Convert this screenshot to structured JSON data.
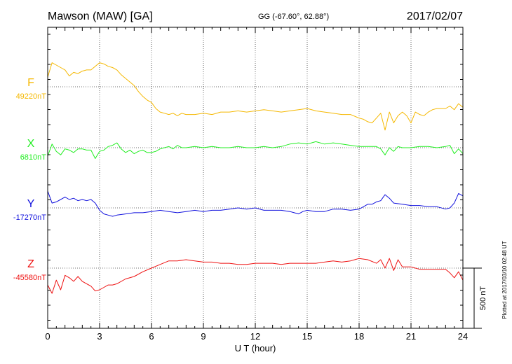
{
  "header": {
    "station": "Mawson (MAW)  [GA]",
    "coords": "GG (-67.60°,  62.88°)",
    "date": "2017/02/07"
  },
  "footer_note": "Plotted at 2017/03/10 02:48 UT",
  "chart_data": {
    "type": "line",
    "xlabel": "U T (hour)",
    "xlim": [
      0,
      24
    ],
    "xticks": [
      "0",
      "3",
      "6",
      "9",
      "12",
      "15",
      "18",
      "21",
      "24"
    ],
    "grid": true,
    "scale_bar": {
      "label": "500 nT",
      "value": 500
    },
    "colors": {
      "F": "#f5b800",
      "X": "#22ee22",
      "Y": "#1111dd",
      "Z": "#ee1111"
    },
    "series": [
      {
        "name": "F",
        "baseline_label": "49220nT",
        "baseline": 49220,
        "x": [
          0,
          0.25,
          0.5,
          0.75,
          1,
          1.25,
          1.5,
          1.75,
          2,
          2.25,
          2.5,
          2.75,
          3,
          3.25,
          3.5,
          3.75,
          4,
          4.25,
          4.5,
          4.75,
          5,
          5.25,
          5.5,
          5.75,
          6,
          6.25,
          6.5,
          6.75,
          7,
          7.25,
          7.5,
          7.75,
          8,
          8.5,
          9,
          9.5,
          10,
          10.5,
          11,
          11.5,
          12,
          12.5,
          13,
          13.5,
          14,
          14.5,
          15,
          15.5,
          16,
          16.5,
          17,
          17.5,
          18,
          18.25,
          18.5,
          18.75,
          19,
          19.25,
          19.5,
          19.75,
          20,
          20.25,
          20.5,
          20.75,
          21,
          21.25,
          21.5,
          21.75,
          22,
          22.25,
          22.5,
          22.75,
          23,
          23.25,
          23.5,
          23.75,
          24
        ],
        "values": [
          49300,
          49420,
          49400,
          49380,
          49360,
          49310,
          49340,
          49330,
          49350,
          49360,
          49360,
          49390,
          49420,
          49410,
          49390,
          49380,
          49360,
          49320,
          49290,
          49260,
          49230,
          49180,
          49140,
          49110,
          49090,
          49040,
          49010,
          49000,
          48990,
          49000,
          48980,
          49000,
          48990,
          48990,
          49000,
          48990,
          49010,
          49010,
          49020,
          49010,
          49020,
          49030,
          49020,
          49010,
          49020,
          49030,
          49040,
          49020,
          49010,
          49000,
          48990,
          48990,
          48960,
          48950,
          48930,
          48920,
          48960,
          49000,
          48860,
          49010,
          48920,
          48980,
          49010,
          48980,
          48920,
          49010,
          48990,
          48980,
          49010,
          49030,
          49040,
          49040,
          49040,
          49060,
          49030,
          49080,
          49050
        ]
      },
      {
        "name": "X",
        "baseline_label": "6810nT",
        "baseline": 6810,
        "x": [
          0,
          0.25,
          0.5,
          0.75,
          1,
          1.25,
          1.5,
          1.75,
          2,
          2.25,
          2.5,
          2.75,
          3,
          3.25,
          3.5,
          3.75,
          4,
          4.25,
          4.5,
          4.75,
          5,
          5.25,
          5.5,
          5.75,
          6,
          6.25,
          6.5,
          6.75,
          7,
          7.25,
          7.5,
          7.75,
          8,
          8.5,
          9,
          9.5,
          10,
          10.5,
          11,
          11.5,
          12,
          12.5,
          13,
          13.5,
          14,
          14.5,
          15,
          15.5,
          16,
          16.5,
          17,
          17.5,
          18,
          18.5,
          19,
          19.25,
          19.5,
          19.75,
          20,
          20.25,
          20.5,
          21,
          21.5,
          22,
          22.5,
          23,
          23.25,
          23.5,
          23.75,
          24
        ],
        "values": [
          6740,
          6840,
          6780,
          6750,
          6800,
          6790,
          6770,
          6800,
          6800,
          6790,
          6790,
          6720,
          6780,
          6790,
          6820,
          6830,
          6850,
          6800,
          6770,
          6790,
          6760,
          6780,
          6790,
          6770,
          6770,
          6780,
          6800,
          6810,
          6820,
          6800,
          6830,
          6810,
          6810,
          6820,
          6810,
          6820,
          6810,
          6810,
          6820,
          6810,
          6810,
          6820,
          6810,
          6820,
          6840,
          6850,
          6840,
          6860,
          6840,
          6850,
          6840,
          6830,
          6820,
          6820,
          6820,
          6800,
          6750,
          6810,
          6780,
          6820,
          6810,
          6810,
          6820,
          6820,
          6810,
          6820,
          6830,
          6760,
          6800,
          6760
        ]
      },
      {
        "name": "Y",
        "baseline_label": "-17270nT",
        "baseline": -17270,
        "x": [
          0,
          0.25,
          0.5,
          0.75,
          1,
          1.25,
          1.5,
          1.75,
          2,
          2.25,
          2.5,
          2.75,
          3,
          3.25,
          3.5,
          3.75,
          4,
          4.5,
          5,
          5.5,
          6,
          6.5,
          7,
          7.5,
          8,
          8.5,
          9,
          9.5,
          10,
          10.5,
          11,
          11.5,
          12,
          12.5,
          13,
          13.5,
          14,
          14.25,
          14.5,
          14.75,
          15,
          15.5,
          16,
          16.5,
          17,
          17.5,
          18,
          18.25,
          18.5,
          18.75,
          19,
          19.25,
          19.5,
          19.75,
          20,
          20.5,
          21,
          21.5,
          22,
          22.5,
          23,
          23.25,
          23.5,
          23.75,
          24
        ],
        "values": [
          -17130,
          -17230,
          -17220,
          -17200,
          -17180,
          -17200,
          -17190,
          -17210,
          -17200,
          -17210,
          -17200,
          -17230,
          -17290,
          -17320,
          -17330,
          -17340,
          -17330,
          -17320,
          -17310,
          -17310,
          -17300,
          -17290,
          -17300,
          -17310,
          -17300,
          -17290,
          -17300,
          -17290,
          -17290,
          -17280,
          -17270,
          -17280,
          -17270,
          -17290,
          -17290,
          -17290,
          -17300,
          -17310,
          -17320,
          -17300,
          -17290,
          -17300,
          -17300,
          -17280,
          -17280,
          -17290,
          -17280,
          -17260,
          -17240,
          -17240,
          -17220,
          -17210,
          -17160,
          -17190,
          -17230,
          -17240,
          -17250,
          -17250,
          -17260,
          -17260,
          -17280,
          -17270,
          -17230,
          -17150,
          -17170
        ]
      },
      {
        "name": "Z",
        "baseline_label": "-45580nT",
        "baseline": -45580,
        "x": [
          0,
          0.25,
          0.5,
          0.75,
          1,
          1.25,
          1.5,
          1.75,
          2,
          2.25,
          2.5,
          2.75,
          3,
          3.25,
          3.5,
          3.75,
          4,
          4.5,
          5,
          5.5,
          6,
          6.5,
          7,
          7.5,
          8,
          8.5,
          9,
          9.5,
          10,
          10.5,
          11,
          11.5,
          12,
          12.5,
          13,
          13.5,
          14,
          14.5,
          15,
          15.5,
          16,
          16.5,
          17,
          17.5,
          18,
          18.5,
          19,
          19.25,
          19.5,
          19.75,
          20,
          20.25,
          20.5,
          21,
          21.5,
          22,
          22.5,
          23,
          23.25,
          23.5,
          23.75,
          24
        ],
        "values": [
          -45720,
          -45790,
          -45680,
          -45760,
          -45640,
          -45660,
          -45690,
          -45650,
          -45690,
          -45710,
          -45730,
          -45770,
          -45760,
          -45740,
          -45720,
          -45720,
          -45710,
          -45670,
          -45650,
          -45610,
          -45580,
          -45550,
          -45520,
          -45520,
          -45510,
          -45520,
          -45530,
          -45530,
          -45540,
          -45540,
          -45550,
          -45550,
          -45540,
          -45540,
          -45540,
          -45550,
          -45540,
          -45540,
          -45540,
          -45540,
          -45530,
          -45520,
          -45530,
          -45520,
          -45500,
          -45510,
          -45540,
          -45510,
          -45580,
          -45500,
          -45600,
          -45510,
          -45570,
          -45570,
          -45590,
          -45590,
          -45590,
          -45590,
          -45620,
          -45660,
          -45610,
          -45680
        ]
      }
    ]
  }
}
